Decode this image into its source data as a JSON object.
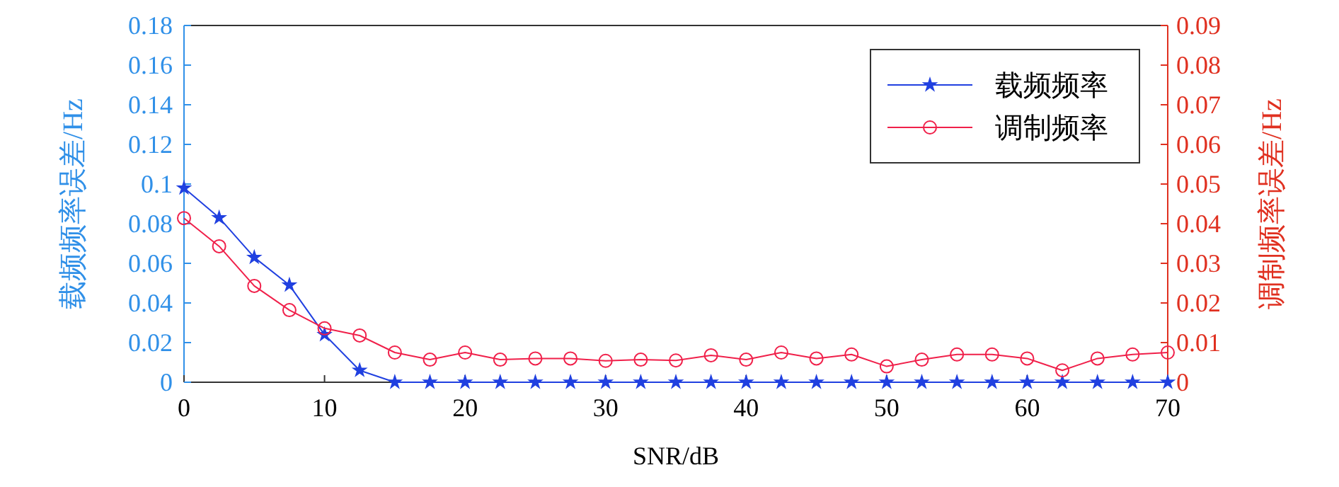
{
  "chart_data": {
    "type": "line",
    "xlabel": "SNR/dB",
    "ylabel": "载频频率误差/Hz",
    "y2label": "调制频率误差/Hz",
    "x": [
      0,
      2.5,
      5,
      7.5,
      10,
      12.5,
      15,
      17.5,
      20,
      22.5,
      25,
      27.5,
      30,
      32.5,
      35,
      37.5,
      40,
      42.5,
      45,
      47.5,
      50,
      52.5,
      55,
      57.5,
      60,
      62.5,
      65,
      67.5,
      70
    ],
    "series": [
      {
        "name": "载频频率",
        "color": "#2040e0",
        "marker": "star",
        "values": [
          0.098,
          0.083,
          0.063,
          0.049,
          0.024,
          0.006,
          0,
          0,
          0,
          0,
          0,
          0,
          0,
          0,
          0,
          0,
          0,
          0,
          0,
          0,
          0,
          0,
          0,
          0,
          0,
          0,
          0,
          0,
          0
        ]
      },
      {
        "name": "调制频率",
        "color": "#f0204a",
        "marker": "circle",
        "axis": "y2",
        "values": [
          0.0414,
          0.0343,
          0.0243,
          0.0182,
          0.0136,
          0.0118,
          0.0075,
          0.0057,
          0.0075,
          0.0057,
          0.006,
          0.006,
          0.0054,
          0.0057,
          0.0055,
          0.0068,
          0.0057,
          0.0075,
          0.006,
          0.007,
          0.004,
          0.0057,
          0.007,
          0.007,
          0.006,
          0.003,
          0.006,
          0.007,
          0.0075
        ]
      }
    ],
    "xlim": [
      0,
      70
    ],
    "xticks": [
      0,
      10,
      20,
      30,
      40,
      50,
      60,
      70
    ],
    "ylim": [
      0,
      0.18
    ],
    "yticks": [
      0,
      0.02,
      0.04,
      0.06,
      0.08,
      0.1,
      0.12,
      0.14,
      0.16,
      0.18
    ],
    "y2lim": [
      0,
      0.09
    ],
    "y2ticks": [
      0,
      0.01,
      0.02,
      0.03,
      0.04,
      0.05,
      0.06,
      0.07,
      0.08,
      0.09
    ],
    "legend": "top right",
    "grid": false,
    "line_style": "solid"
  }
}
